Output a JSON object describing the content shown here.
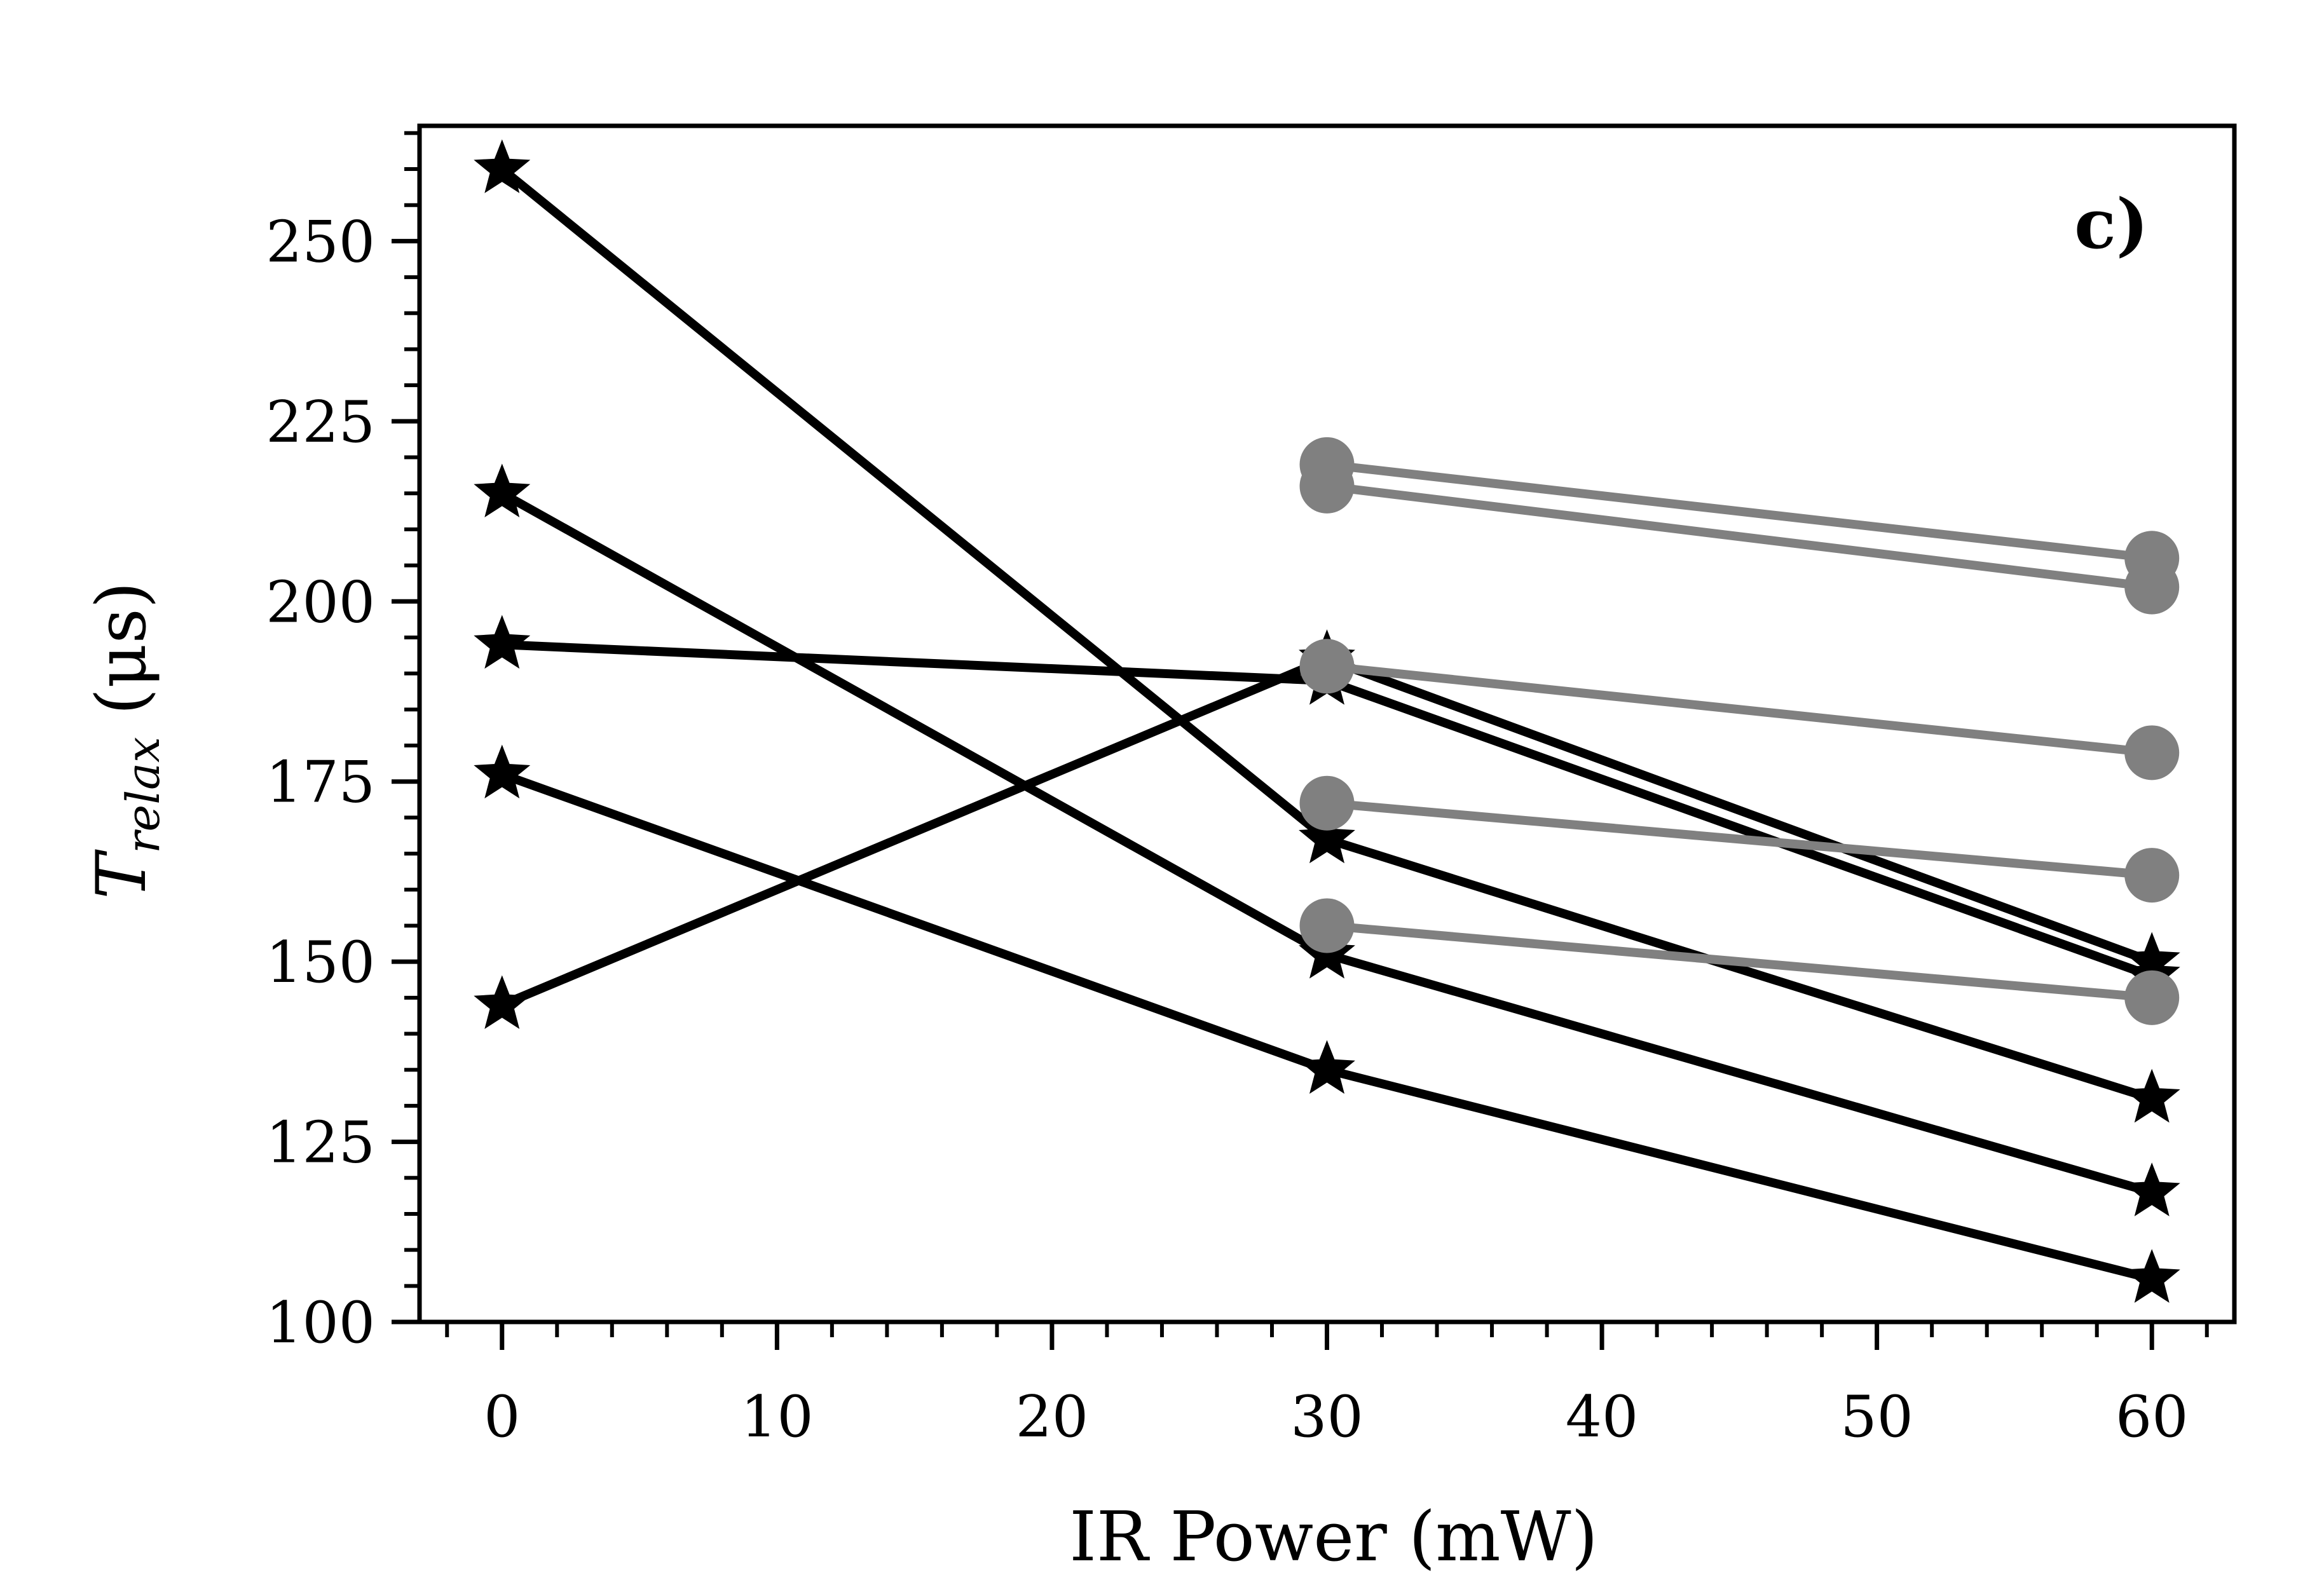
{
  "chart_data": {
    "type": "line",
    "panel_label": "c)",
    "xlabel": "IR Power (mW)",
    "ylabel": {
      "main": "T",
      "subscript": "relax",
      "unit": " (μs)"
    },
    "xlim": [
      -3,
      63
    ],
    "ylim": [
      100,
      266
    ],
    "xticks": [
      0,
      10,
      20,
      30,
      40,
      50,
      60
    ],
    "yticks": [
      100,
      125,
      150,
      175,
      200,
      225,
      250
    ],
    "x_minor_step": 2,
    "y_minor_step": 5,
    "grid": false,
    "colors": {
      "star": "#000000",
      "circle": "#808080"
    },
    "series": [
      {
        "marker": "star",
        "color": "#000000",
        "x": [
          0,
          30,
          60
        ],
        "y": [
          260,
          167,
          131
        ]
      },
      {
        "marker": "star",
        "color": "#000000",
        "x": [
          0,
          30,
          60
        ],
        "y": [
          215,
          151,
          118
        ]
      },
      {
        "marker": "star",
        "color": "#000000",
        "x": [
          0,
          30,
          60
        ],
        "y": [
          194,
          189,
          148
        ]
      },
      {
        "marker": "star",
        "color": "#000000",
        "x": [
          0,
          30,
          60
        ],
        "y": [
          176,
          135,
          106
        ]
      },
      {
        "marker": "star",
        "color": "#000000",
        "x": [
          0,
          30,
          60
        ],
        "y": [
          144,
          192,
          150
        ]
      },
      {
        "marker": "circle",
        "color": "#808080",
        "x": [
          30,
          60
        ],
        "y": [
          219,
          206
        ]
      },
      {
        "marker": "circle",
        "color": "#808080",
        "x": [
          30,
          60
        ],
        "y": [
          216,
          202
        ]
      },
      {
        "marker": "circle",
        "color": "#808080",
        "x": [
          30,
          60
        ],
        "y": [
          191,
          179
        ]
      },
      {
        "marker": "circle",
        "color": "#808080",
        "x": [
          30,
          60
        ],
        "y": [
          172,
          162
        ]
      },
      {
        "marker": "circle",
        "color": "#808080",
        "x": [
          30,
          60
        ],
        "y": [
          155,
          145
        ]
      }
    ]
  }
}
